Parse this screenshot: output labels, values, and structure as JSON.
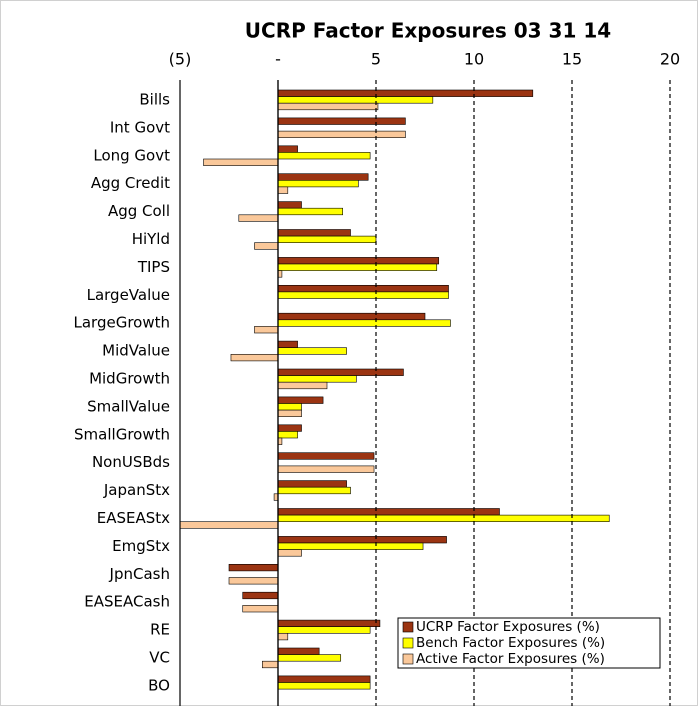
{
  "chart_data": {
    "type": "hbar",
    "title": "UCRP Factor Exposures 03 31 14",
    "categories": [
      "Bills",
      "Int Govt",
      "Long Govt",
      "Agg Credit",
      "Agg Coll",
      "HiYld",
      "TIPS",
      "LargeValue",
      "LargeGrowth",
      "MidValue",
      "MidGrowth",
      "SmallValue",
      "SmallGrowth",
      "NonUSBds",
      "JapanStx",
      "EASEAStx",
      "EmgStx",
      "JpnCash",
      "EASEACash",
      "RE",
      "VC",
      "BO"
    ],
    "series": [
      {
        "name": "UCRP Factor Exposures (%)",
        "color": "#9b3412",
        "values": [
          13.0,
          6.5,
          1.0,
          4.6,
          1.2,
          3.7,
          8.2,
          8.7,
          7.5,
          1.0,
          6.4,
          2.3,
          1.2,
          4.9,
          3.5,
          11.3,
          8.6,
          -2.5,
          -1.8,
          5.2,
          2.1,
          4.7
        ]
      },
      {
        "name": "Bench Factor Exposures (%)",
        "color": "#ffff00",
        "values": [
          7.9,
          0,
          4.7,
          4.1,
          3.3,
          5.0,
          8.1,
          8.7,
          8.8,
          3.5,
          4.0,
          1.2,
          1.0,
          0,
          3.7,
          16.9,
          7.4,
          0,
          0,
          4.7,
          3.2,
          4.7
        ]
      },
      {
        "name": "Active Factor Exposures (%)",
        "color": "#fac89a",
        "values": [
          5.1,
          6.5,
          -3.8,
          0.5,
          -2.0,
          -1.2,
          0.2,
          0,
          -1.2,
          -2.4,
          2.5,
          1.2,
          0.2,
          4.9,
          -0.2,
          -5.6,
          1.2,
          -2.5,
          -1.8,
          0.5,
          -0.8,
          0
        ]
      }
    ],
    "xlim": [
      -5,
      20
    ],
    "xticks": [
      {
        "value": -5,
        "label": "(5)"
      },
      {
        "value": 0,
        "label": "-"
      },
      5,
      10,
      15,
      20
    ],
    "grid": true,
    "legend": "lower right"
  }
}
